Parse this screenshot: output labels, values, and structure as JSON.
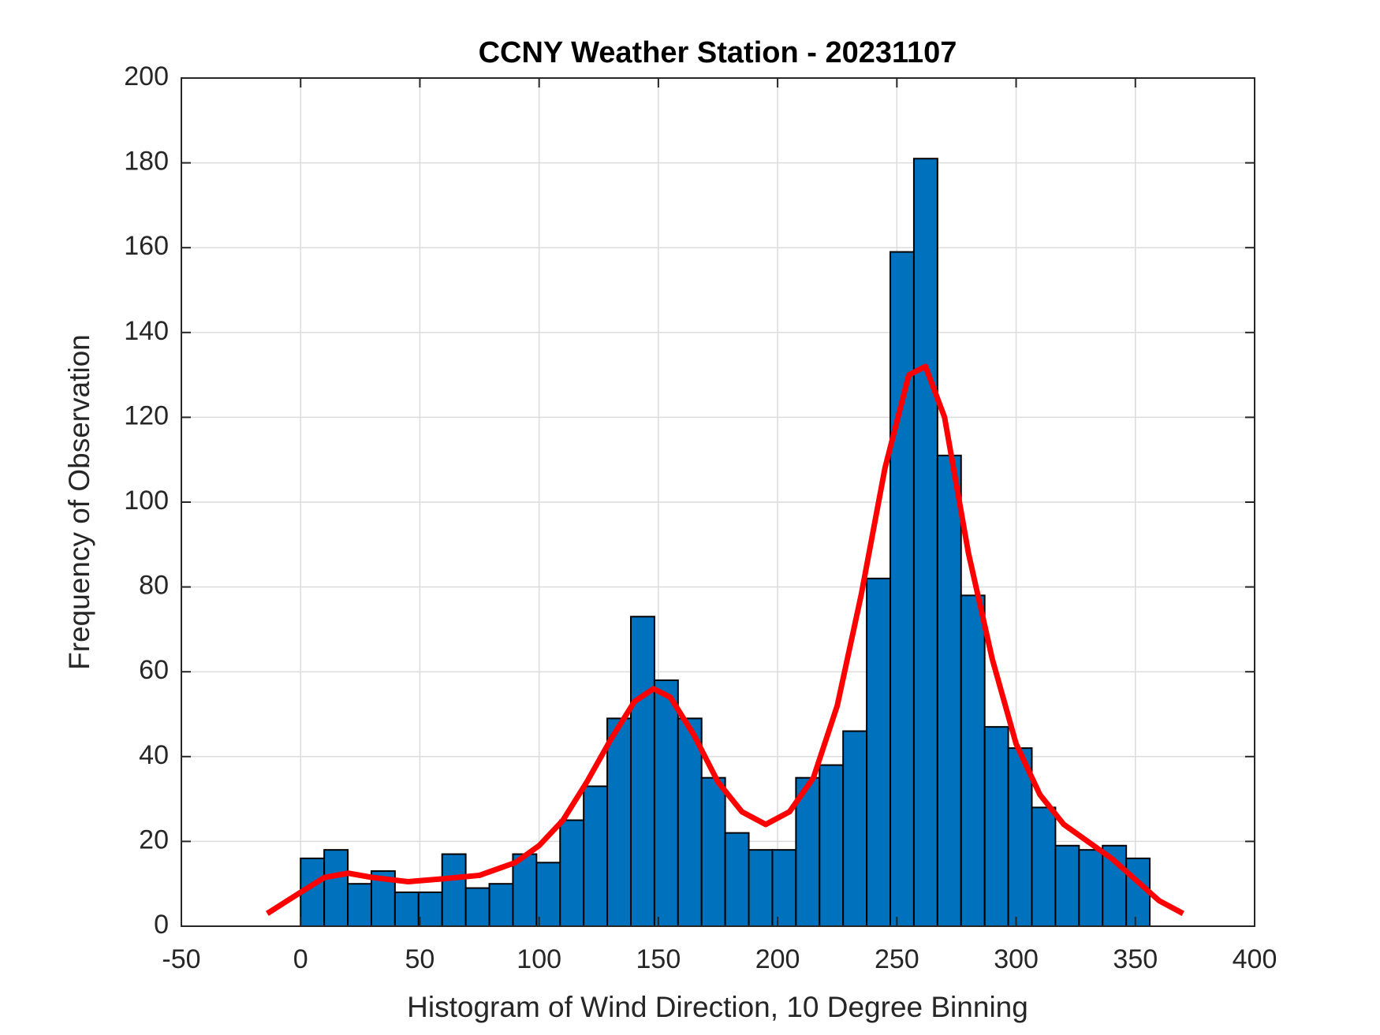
{
  "chart_data": {
    "type": "histogram",
    "title": "CCNY Weather Station - 20231107",
    "xlabel": "Histogram of Wind Direction, 10 Degree Binning",
    "ylabel": "Frequency of Observation",
    "bins": [
      0,
      9.89,
      19.78,
      29.67,
      39.56,
      49.45,
      59.34,
      69.23,
      79.12,
      89.01,
      98.9,
      108.79,
      118.68,
      128.57,
      138.46,
      148.35,
      158.24,
      168.13,
      178.02,
      187.91,
      197.8,
      207.69,
      217.58,
      227.47,
      237.36,
      247.25,
      257.14,
      267.03,
      276.92,
      286.81,
      296.7,
      306.59,
      316.48,
      326.37,
      336.26,
      346.15,
      356.04
    ],
    "values": [
      16,
      18,
      10,
      13,
      8,
      8,
      17,
      9,
      10,
      17,
      15,
      25,
      33,
      49,
      73,
      58,
      49,
      35,
      22,
      18,
      18,
      35,
      38,
      46,
      82,
      159,
      181,
      111,
      78,
      47,
      42,
      28,
      19,
      18,
      19,
      16
    ],
    "color": "#0072bd",
    "fit": {
      "type": "line",
      "color": "#ff0000",
      "x": [
        -14,
        0,
        10,
        20,
        30,
        45,
        60,
        75,
        90,
        100,
        110,
        120,
        130,
        140,
        148,
        155,
        165,
        175,
        185,
        195,
        205,
        215,
        225,
        235,
        245,
        255,
        262,
        270,
        280,
        290,
        300,
        310,
        320,
        330,
        340,
        350,
        360,
        370
      ],
      "values": [
        3,
        8,
        11.5,
        12.5,
        11.5,
        10.5,
        11.2,
        12,
        15,
        19,
        25,
        34,
        44,
        53,
        56,
        54,
        45,
        34,
        27,
        24,
        27,
        35,
        52,
        78,
        108,
        130,
        132,
        120,
        88,
        63,
        43,
        31,
        24,
        20,
        16,
        11,
        6,
        3
      ]
    },
    "xlim": [
      -50,
      400
    ],
    "xticks": [
      -50,
      0,
      50,
      100,
      150,
      200,
      250,
      300,
      350,
      400
    ],
    "ylim": [
      0,
      200
    ],
    "yticks": [
      0,
      20,
      40,
      60,
      80,
      100,
      120,
      140,
      160,
      180,
      200
    ],
    "grid": true
  }
}
